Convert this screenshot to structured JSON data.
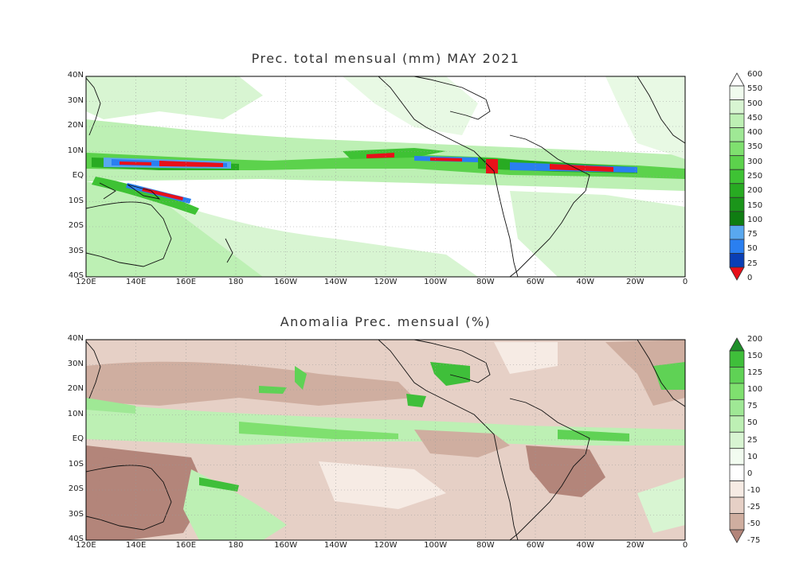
{
  "panels": [
    {
      "title": "Prec. total mensual (mm) MAY 2021",
      "lat_labels": [
        "40N",
        "30N",
        "20N",
        "10N",
        "EQ",
        "10S",
        "20S",
        "30S",
        "40S"
      ],
      "lon_labels": [
        "120E",
        "140E",
        "160E",
        "180",
        "160W",
        "140W",
        "120W",
        "100W",
        "80W",
        "60W",
        "40W",
        "20W",
        "0"
      ],
      "colorbar": {
        "levels": [
          "0",
          "25",
          "50",
          "75",
          "100",
          "150",
          "200",
          "250",
          "300",
          "350",
          "400",
          "450",
          "500",
          "550",
          "600"
        ],
        "colors": [
          "#ffffff",
          "#f0fbee",
          "#d8f5d2",
          "#bdf0b4",
          "#9fe895",
          "#7fe06f",
          "#5cd24c",
          "#3ec234",
          "#28ab22",
          "#1b951a",
          "#0f7d12",
          "#59a8ef",
          "#2a7ff0",
          "#0a3fb5",
          "#e8101a"
        ]
      }
    },
    {
      "title": "Anomalia Prec. mensual (%)",
      "lat_labels": [
        "40N",
        "30N",
        "20N",
        "10N",
        "EQ",
        "10S",
        "20S",
        "30S",
        "40S"
      ],
      "lon_labels": [
        "120E",
        "140E",
        "160E",
        "180",
        "160W",
        "140W",
        "120W",
        "100W",
        "80W",
        "60W",
        "40W",
        "20W",
        "0"
      ],
      "colorbar": {
        "levels": [
          "200",
          "150",
          "125",
          "100",
          "75",
          "50",
          "25",
          "10",
          "0",
          "-10",
          "-25",
          "-50",
          "-75"
        ],
        "colors": [
          "#1f8f2a",
          "#3fbf3a",
          "#5fd255",
          "#7fe06f",
          "#9fe895",
          "#bdf0b4",
          "#d8f5d2",
          "#f2fcf0",
          "#ffffff",
          "#f6ebe4",
          "#e6d0c6",
          "#cfaea0",
          "#b3857a"
        ]
      }
    }
  ]
}
